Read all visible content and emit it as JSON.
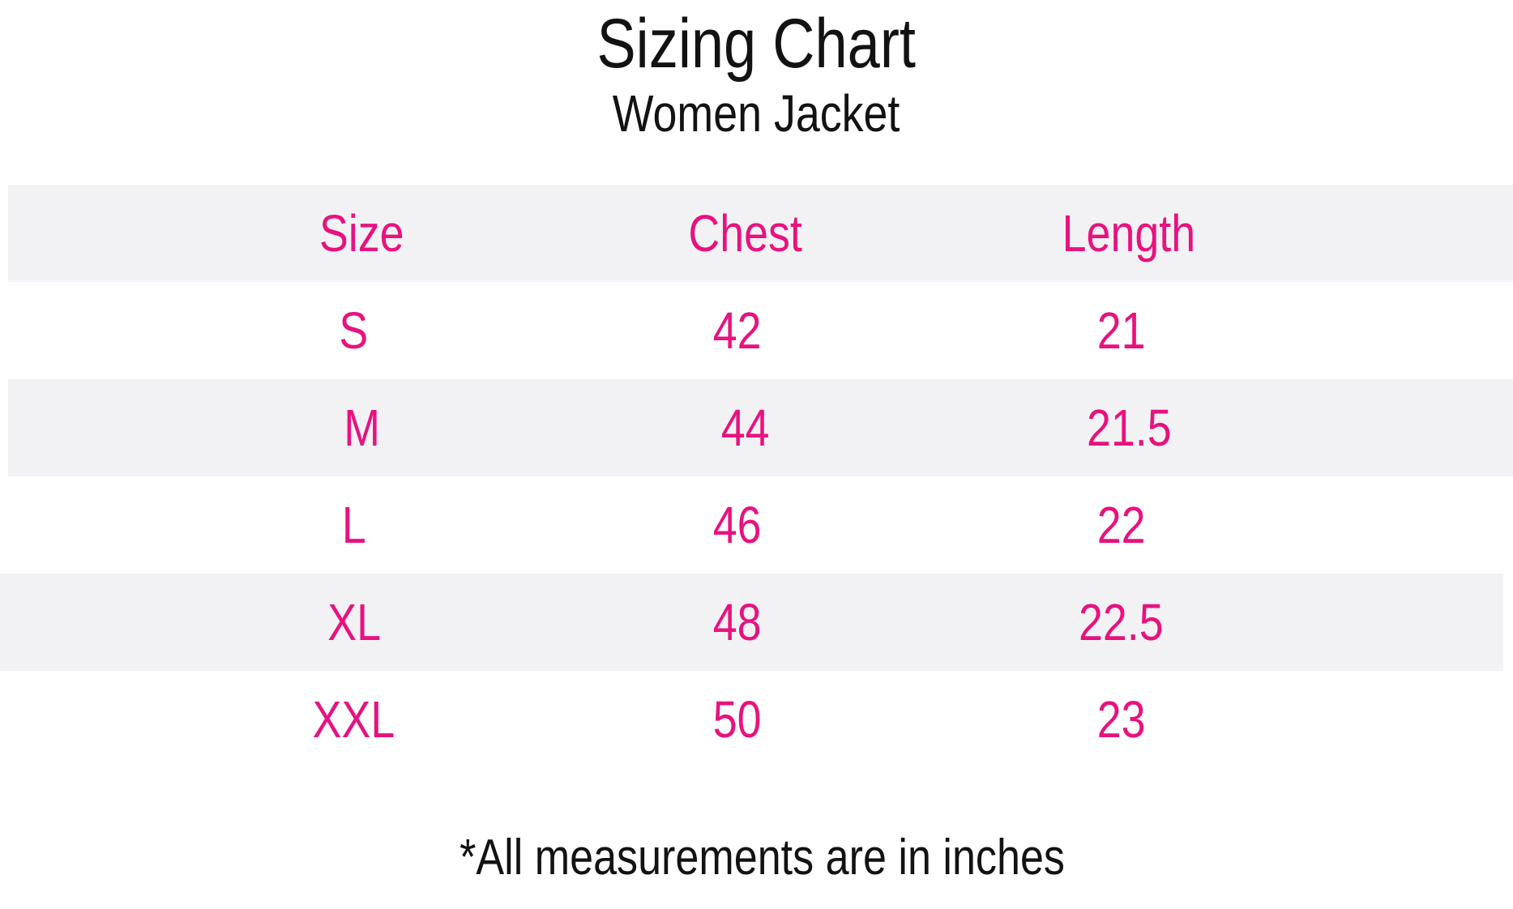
{
  "title": "Sizing Chart",
  "subtitle": "Women Jacket",
  "footnote": "*All measurements are in inches",
  "colors": {
    "accent_pink": "#E8127F",
    "row_alt_gray": "#F2F2F4",
    "text_black": "#121212",
    "background": "#FFFFFF"
  },
  "chart_data": {
    "type": "table",
    "title": "Sizing Chart",
    "subtitle": "Women Jacket",
    "columns": [
      "Size",
      "Chest",
      "Length"
    ],
    "rows": [
      [
        "S",
        "42",
        "21"
      ],
      [
        "M",
        "44",
        "21.5"
      ],
      [
        "L",
        "46",
        "22"
      ],
      [
        "XL",
        "48",
        "22.5"
      ],
      [
        "XXL",
        "50",
        "23"
      ]
    ],
    "footnote": "*All measurements are in inches",
    "units": "inches",
    "layout_hints": {
      "header_row_background": "#F2F2F4",
      "alternating_rows": true,
      "gridlines": false,
      "text_color_values": "#E8127F",
      "text_color_titles": "#121212"
    }
  }
}
